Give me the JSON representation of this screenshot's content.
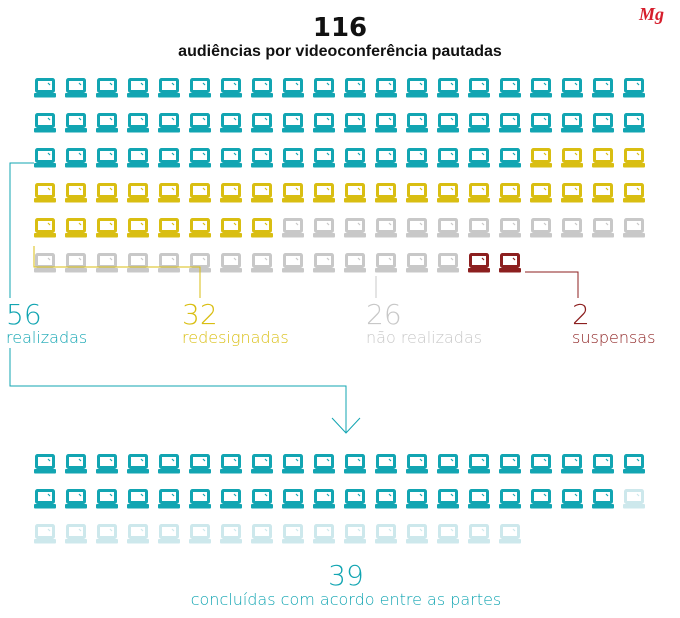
{
  "brand": "Mg",
  "title": {
    "total": "116",
    "subtitle": "audiências por videoconferência pautadas"
  },
  "colors": {
    "realizadas": "#12A5B2",
    "redesignadas": "#D9BE12",
    "nao_realizadas": "#C8C8C8",
    "suspensas": "#8C1F1F",
    "concluidas_light": "#CDE8EC",
    "brand": "#D61E2C"
  },
  "chart_data": [
    {
      "type": "pictogram",
      "title": "116",
      "subtitle": "audiências por videoconferência pautadas",
      "icon": "laptop-icon",
      "total": 116,
      "series": [
        {
          "name": "realizadas",
          "value": 56,
          "color": "#12A5B2"
        },
        {
          "name": "redesignadas",
          "value": 32,
          "color": "#D9BE12"
        },
        {
          "name": "não realizadas",
          "value": 26,
          "color": "#C8C8C8"
        },
        {
          "name": "suspensas",
          "value": 2,
          "color": "#8C1F1F"
        }
      ]
    },
    {
      "type": "pictogram",
      "icon": "laptop-icon",
      "total": 56,
      "series": [
        {
          "name": "concluídas com acordo entre as partes",
          "value": 39,
          "color": "#12A5B2"
        },
        {
          "name": "",
          "value": 17,
          "color": "#CDE8EC"
        }
      ]
    }
  ],
  "labels": {
    "realizadas": {
      "value": "56",
      "text": "realizadas"
    },
    "redesignadas": {
      "value": "32",
      "text": "redesignadas"
    },
    "nao_realizadas": {
      "value": "26",
      "text": "não realizadas"
    },
    "suspensas": {
      "value": "2",
      "text": "suspensas"
    },
    "concluidas": {
      "value": "39",
      "text": "concluídas com acordo entre as partes"
    }
  }
}
